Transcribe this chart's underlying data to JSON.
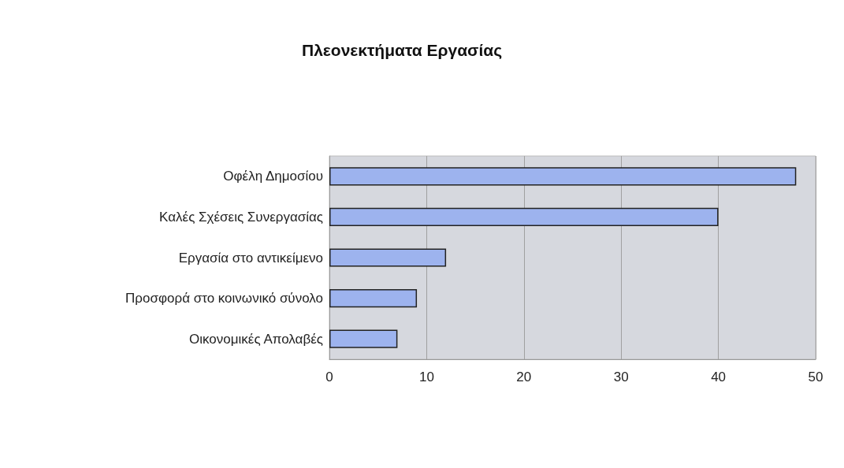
{
  "chart_data": {
    "type": "bar",
    "orientation": "horizontal",
    "title": "Πλεονεκτήματα Εργασίας",
    "categories": [
      "Οφέλη Δημοσίου",
      "Καλές Σχέσεις Συνεργασίας",
      "Εργασία στο αντικείμενο",
      "Προσφορά στο κοινωνικό σύνολο",
      "Οικονομικές Απολαβές"
    ],
    "values": [
      48,
      40,
      12,
      9,
      7
    ],
    "color": "#9db3ee",
    "xlim": [
      0,
      50
    ],
    "xticks": [
      0,
      10,
      20,
      30,
      40,
      50
    ],
    "grid": "x"
  }
}
